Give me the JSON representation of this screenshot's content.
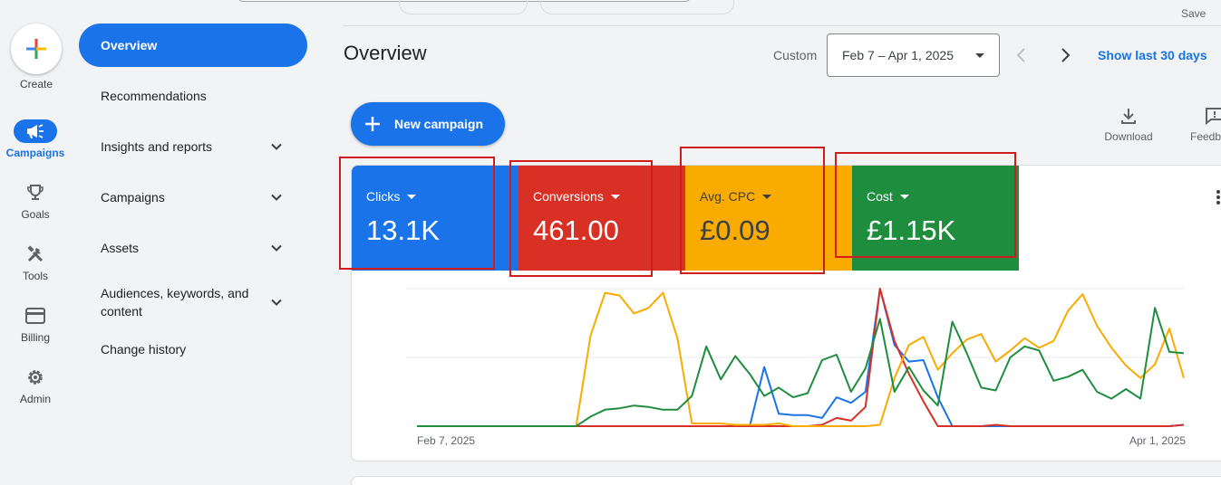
{
  "top": {
    "save_label": "Save"
  },
  "rail": {
    "create_label": "Create",
    "items": [
      {
        "label": "Campaigns",
        "icon": "megaphone-icon",
        "active": true
      },
      {
        "label": "Goals",
        "icon": "trophy-icon"
      },
      {
        "label": "Tools",
        "icon": "tools-icon"
      },
      {
        "label": "Billing",
        "icon": "credit-card-icon"
      },
      {
        "label": "Admin",
        "icon": "gear-icon"
      }
    ]
  },
  "nav": {
    "items": [
      {
        "label": "Overview",
        "active": true
      },
      {
        "label": "Recommendations"
      },
      {
        "label": "Insights and reports",
        "expandable": true
      },
      {
        "label": "Campaigns",
        "expandable": true
      },
      {
        "label": "Assets",
        "expandable": true
      },
      {
        "label": "Audiences, keywords, and content",
        "expandable": true
      },
      {
        "label": "Change history"
      }
    ]
  },
  "header": {
    "title": "Overview",
    "range_type": "Custom",
    "date_range": "Feb 7 – Apr 1, 2025",
    "show_last": "Show last 30 days"
  },
  "toolbar": {
    "new_campaign": "New campaign",
    "download": "Download",
    "feedback": "Feedb"
  },
  "metrics": [
    {
      "label": "Clicks",
      "value": "13.1K",
      "color": "#1a73e8"
    },
    {
      "label": "Conversions",
      "value": "461.00",
      "color": "#d93025"
    },
    {
      "label": "Avg. CPC",
      "value": "£0.09",
      "color": "#f9ab00"
    },
    {
      "label": "Cost",
      "value": "£1.15K",
      "color": "#1e8e3e"
    }
  ],
  "chart_data": {
    "type": "line",
    "x_start_label": "Feb 7, 2025",
    "x_end_label": "Apr 1, 2025",
    "grid": true,
    "series": [
      {
        "color": "#1a73e8",
        "values": [
          0,
          0,
          0,
          0,
          0,
          0,
          0,
          0,
          0,
          0,
          0,
          0,
          0,
          0,
          0,
          0,
          0,
          0,
          0,
          0,
          0,
          0,
          0,
          0,
          0.43,
          0.09,
          0.08,
          0.08,
          0.06,
          0.21,
          0.17,
          0.25,
          1.0,
          0.59,
          0.47,
          0.48,
          0.21,
          0,
          0,
          0,
          0,
          0,
          0,
          0,
          0,
          0,
          0,
          0,
          0,
          0,
          0,
          0,
          0,
          0.01
        ]
      },
      {
        "color": "#d93025",
        "values": [
          0,
          0,
          0,
          0,
          0,
          0,
          0,
          0,
          0,
          0,
          0,
          0,
          0,
          0,
          0,
          0,
          0,
          0,
          0,
          0,
          0,
          0,
          0,
          0,
          0,
          0,
          0,
          0,
          0.01,
          0.06,
          0.04,
          0.14,
          1.0,
          0.62,
          0.38,
          0.18,
          0,
          0,
          0,
          0,
          0.01,
          0,
          0,
          0,
          0,
          0,
          0,
          0,
          0,
          0,
          0,
          0,
          0,
          0.01
        ]
      },
      {
        "color": "#f9ab00",
        "values": [
          0,
          0,
          0,
          0,
          0,
          0,
          0,
          0,
          0,
          0,
          0,
          0,
          0.66,
          0.97,
          0.95,
          0.82,
          0.86,
          0.97,
          0.64,
          0.02,
          0.02,
          0.02,
          0.01,
          0.01,
          0.01,
          0.02,
          0,
          0,
          0,
          0,
          0,
          0,
          0.01,
          0.35,
          0.59,
          0.65,
          0.41,
          0.53,
          0.63,
          0.67,
          0.47,
          0.55,
          0.64,
          0.57,
          0.62,
          0.84,
          0.96,
          0.73,
          0.57,
          0.44,
          0.35,
          0.45,
          0.71,
          0.35
        ]
      },
      {
        "color": "#1e8e3e",
        "values": [
          0,
          0,
          0,
          0,
          0,
          0,
          0,
          0,
          0,
          0,
          0,
          0,
          0.07,
          0.12,
          0.13,
          0.15,
          0.14,
          0.12,
          0.12,
          0.22,
          0.58,
          0.34,
          0.51,
          0.38,
          0.22,
          0.28,
          0.21,
          0.24,
          0.48,
          0.52,
          0.25,
          0.42,
          0.78,
          0.25,
          0.43,
          0.26,
          0.15,
          0.76,
          0.53,
          0.28,
          0.26,
          0.5,
          0.58,
          0.55,
          0.33,
          0.36,
          0.41,
          0.25,
          0.2,
          0.27,
          0.2,
          0.86,
          0.54,
          0.53
        ]
      }
    ]
  }
}
